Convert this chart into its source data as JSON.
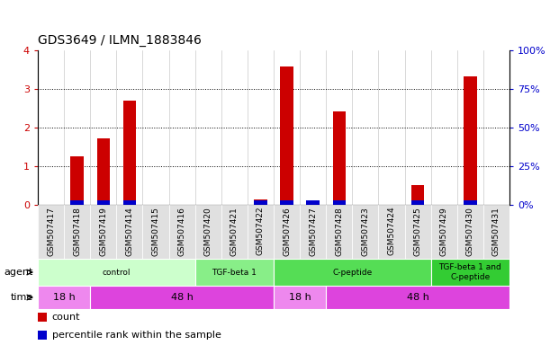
{
  "title": "GDS3649 / ILMN_1883846",
  "samples": [
    "GSM507417",
    "GSM507418",
    "GSM507419",
    "GSM507414",
    "GSM507415",
    "GSM507416",
    "GSM507420",
    "GSM507421",
    "GSM507422",
    "GSM507426",
    "GSM507427",
    "GSM507428",
    "GSM507423",
    "GSM507424",
    "GSM507425",
    "GSM507429",
    "GSM507430",
    "GSM507431"
  ],
  "count_values": [
    0.0,
    1.25,
    1.72,
    2.7,
    0.0,
    0.0,
    0.0,
    0.0,
    0.13,
    3.57,
    0.12,
    2.42,
    0.0,
    0.0,
    0.52,
    0.0,
    3.32,
    0.0
  ],
  "percentile_values_scaled": [
    0.0,
    0.28,
    0.32,
    0.68,
    0.0,
    0.0,
    0.0,
    0.0,
    0.08,
    1.0,
    0.08,
    0.62,
    0.0,
    0.0,
    0.08,
    0.0,
    0.96,
    0.0
  ],
  "ylim_left": [
    0,
    4
  ],
  "ylim_right": [
    0,
    100
  ],
  "yticks_left": [
    0,
    1,
    2,
    3,
    4
  ],
  "yticks_right": [
    0,
    25,
    50,
    75,
    100
  ],
  "ytick_labels_right": [
    "0%",
    "25%",
    "50%",
    "75%",
    "100%"
  ],
  "bar_color_red": "#CC0000",
  "bar_color_blue": "#0000CC",
  "bar_width": 0.5,
  "agent_groups": [
    {
      "label": "control",
      "start": 0,
      "end": 5,
      "color": "#ccffcc"
    },
    {
      "label": "TGF-beta 1",
      "start": 6,
      "end": 8,
      "color": "#88ee88"
    },
    {
      "label": "C-peptide",
      "start": 9,
      "end": 14,
      "color": "#55dd55"
    },
    {
      "label": "TGF-beta 1 and\nC-peptide",
      "start": 15,
      "end": 17,
      "color": "#33cc33"
    }
  ],
  "time_groups": [
    {
      "label": "18 h",
      "start": 0,
      "end": 1,
      "color": "#ee88ee"
    },
    {
      "label": "48 h",
      "start": 2,
      "end": 8,
      "color": "#dd44dd"
    },
    {
      "label": "18 h",
      "start": 9,
      "end": 10,
      "color": "#ee88ee"
    },
    {
      "label": "48 h",
      "start": 11,
      "end": 17,
      "color": "#dd44dd"
    }
  ],
  "agent_label": "agent",
  "time_label": "time",
  "legend_count": "count",
  "legend_percentile": "percentile rank within the sample",
  "bg_color": "#ffffff",
  "tick_label_color_left": "#CC0000",
  "tick_label_color_right": "#0000CC"
}
